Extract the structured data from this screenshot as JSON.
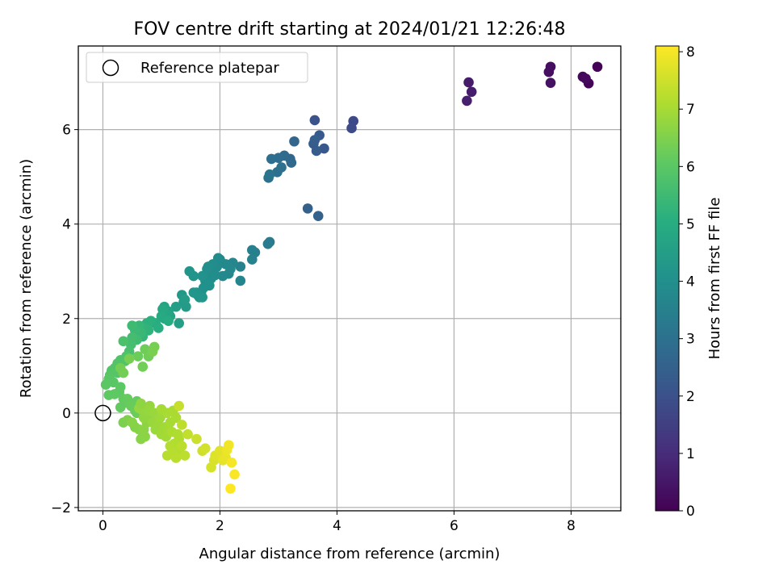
{
  "chart_data": {
    "type": "scatter",
    "title": "FOV centre drift starting at 2024/01/21 12:26:48",
    "xlabel": "Angular distance from reference (arcmin)",
    "ylabel": "Rotation from reference (arcmin)",
    "xlim": [
      -0.42,
      8.85
    ],
    "ylim": [
      -2.07,
      7.77
    ],
    "xticks": [
      0,
      2,
      4,
      6,
      8
    ],
    "yticks": [
      -2,
      0,
      2,
      4,
      6
    ],
    "grid": true,
    "legend": {
      "position": "top-left",
      "entries": [
        "Reference platepar"
      ]
    },
    "reference_point": {
      "x": 0,
      "y": 0
    },
    "colorbar": {
      "label": "Hours from first FF file",
      "colormap": "viridis",
      "range": [
        0,
        8.1
      ],
      "ticks": [
        0,
        1,
        2,
        3,
        4,
        5,
        6,
        7,
        8
      ]
    },
    "points": [
      [
        8.45,
        7.33,
        0.05
      ],
      [
        8.3,
        6.98,
        0.1
      ],
      [
        8.2,
        7.12,
        0.15
      ],
      [
        8.25,
        7.08,
        0.2
      ],
      [
        7.65,
        7.33,
        0.3
      ],
      [
        7.62,
        7.22,
        0.35
      ],
      [
        7.65,
        6.99,
        0.4
      ],
      [
        6.25,
        7.0,
        0.6
      ],
      [
        6.3,
        6.8,
        0.65
      ],
      [
        6.22,
        6.61,
        0.7
      ],
      [
        4.28,
        6.18,
        1.8
      ],
      [
        4.25,
        6.03,
        1.85
      ],
      [
        3.62,
        6.2,
        2.05
      ],
      [
        3.78,
        5.6,
        2.2
      ],
      [
        3.7,
        5.88,
        2.25
      ],
      [
        3.6,
        5.7,
        2.3
      ],
      [
        3.65,
        5.55,
        2.35
      ],
      [
        3.62,
        5.78,
        2.4
      ],
      [
        3.5,
        4.33,
        2.5
      ],
      [
        3.68,
        4.17,
        2.55
      ],
      [
        3.27,
        5.75,
        2.65
      ],
      [
        3.2,
        5.38,
        2.7
      ],
      [
        3.22,
        5.3,
        2.75
      ],
      [
        3.1,
        5.45,
        2.8
      ],
      [
        3.0,
        5.4,
        2.85
      ],
      [
        2.88,
        5.38,
        2.9
      ],
      [
        2.98,
        5.1,
        2.95
      ],
      [
        3.05,
        5.2,
        3.0
      ],
      [
        2.83,
        4.98,
        3.05
      ],
      [
        2.85,
        5.05,
        3.1
      ],
      [
        2.85,
        3.62,
        3.3
      ],
      [
        2.82,
        3.58,
        3.35
      ],
      [
        2.6,
        3.4,
        3.45
      ],
      [
        2.55,
        3.45,
        3.5
      ],
      [
        2.55,
        3.25,
        3.55
      ],
      [
        2.35,
        3.1,
        3.6
      ],
      [
        2.35,
        2.8,
        3.65
      ],
      [
        2.22,
        3.18,
        3.7
      ],
      [
        2.15,
        2.95,
        3.72
      ],
      [
        2.18,
        3.05,
        3.75
      ],
      [
        2.1,
        3.15,
        3.78
      ],
      [
        2.05,
        2.9,
        3.8
      ],
      [
        2.0,
        3.25,
        3.82
      ],
      [
        1.97,
        3.28,
        3.84
      ],
      [
        1.95,
        3.1,
        3.86
      ],
      [
        1.92,
        2.92,
        3.88
      ],
      [
        1.9,
        3.0,
        3.9
      ],
      [
        1.88,
        3.15,
        3.92
      ],
      [
        1.85,
        2.85,
        3.94
      ],
      [
        1.83,
        2.95,
        3.96
      ],
      [
        1.8,
        3.1,
        3.98
      ],
      [
        1.78,
        3.05,
        4.0
      ],
      [
        1.75,
        2.8,
        4.02
      ],
      [
        1.82,
        2.7,
        4.04
      ],
      [
        1.72,
        2.65,
        4.06
      ],
      [
        1.7,
        2.9,
        4.08
      ],
      [
        1.68,
        2.55,
        4.1
      ],
      [
        1.62,
        2.5,
        4.12
      ],
      [
        1.55,
        2.9,
        4.14
      ],
      [
        1.6,
        2.55,
        4.16
      ],
      [
        1.48,
        3.0,
        4.18
      ],
      [
        1.65,
        2.45,
        4.2
      ],
      [
        1.7,
        2.45,
        4.22
      ],
      [
        1.55,
        2.55,
        4.24
      ],
      [
        1.35,
        2.5,
        4.3
      ],
      [
        1.38,
        2.35,
        4.35
      ],
      [
        1.42,
        2.25,
        4.4
      ],
      [
        1.4,
        2.4,
        4.45
      ],
      [
        1.25,
        2.25,
        4.5
      ],
      [
        1.3,
        1.9,
        4.55
      ],
      [
        1.12,
        2.15,
        4.6
      ],
      [
        1.15,
        2.05,
        4.65
      ],
      [
        1.05,
        2.25,
        4.7
      ],
      [
        1.1,
        2.1,
        4.75
      ],
      [
        1.05,
        2.0,
        4.8
      ],
      [
        1.02,
        2.2,
        4.85
      ],
      [
        1.0,
        2.05,
        4.9
      ],
      [
        1.12,
        1.95,
        4.95
      ],
      [
        0.9,
        1.9,
        5.0
      ],
      [
        0.95,
        1.8,
        5.05
      ],
      [
        0.82,
        1.95,
        5.1
      ],
      [
        0.75,
        1.9,
        5.15
      ],
      [
        0.78,
        1.75,
        5.2
      ],
      [
        0.7,
        1.8,
        5.25
      ],
      [
        0.68,
        1.62,
        5.3
      ],
      [
        0.62,
        1.85,
        5.35
      ],
      [
        0.65,
        1.7,
        5.4
      ],
      [
        0.55,
        1.75,
        5.45
      ],
      [
        0.5,
        1.85,
        5.5
      ],
      [
        0.58,
        1.55,
        5.55
      ],
      [
        0.5,
        1.6,
        5.6
      ],
      [
        0.48,
        1.45,
        5.65
      ],
      [
        0.45,
        1.3,
        5.7
      ],
      [
        0.35,
        1.52,
        5.75
      ],
      [
        0.3,
        1.12,
        5.8
      ],
      [
        0.4,
        1.2,
        5.82
      ],
      [
        0.38,
        1.1,
        5.84
      ],
      [
        0.25,
        1.05,
        5.86
      ],
      [
        0.2,
        0.95,
        5.88
      ],
      [
        0.15,
        0.9,
        5.9
      ],
      [
        0.25,
        0.85,
        5.92
      ],
      [
        0.12,
        0.8,
        5.94
      ],
      [
        0.18,
        0.65,
        5.96
      ],
      [
        0.1,
        0.72,
        5.98
      ],
      [
        0.05,
        0.6,
        6.0
      ],
      [
        0.3,
        0.55,
        6.02
      ],
      [
        0.28,
        0.45,
        6.04
      ],
      [
        0.2,
        0.4,
        6.06
      ],
      [
        0.1,
        0.38,
        6.08
      ],
      [
        0.35,
        0.3,
        6.1
      ],
      [
        0.38,
        0.22,
        6.12
      ],
      [
        0.3,
        0.12,
        6.14
      ],
      [
        0.42,
        0.3,
        6.16
      ],
      [
        0.58,
        0.25,
        6.18
      ],
      [
        0.48,
        0.15,
        6.2
      ],
      [
        0.55,
        0.05,
        6.22
      ],
      [
        0.58,
        0.0,
        6.24
      ],
      [
        0.6,
        1.2,
        6.26
      ],
      [
        0.72,
        1.35,
        6.28
      ],
      [
        0.78,
        1.2,
        6.3
      ],
      [
        0.68,
        0.98,
        6.32
      ],
      [
        0.35,
        0.85,
        6.34
      ],
      [
        0.3,
        0.95,
        6.36
      ],
      [
        0.45,
        1.15,
        6.38
      ],
      [
        0.88,
        1.4,
        6.4
      ],
      [
        0.85,
        1.3,
        6.42
      ],
      [
        0.35,
        -0.2,
        6.45
      ],
      [
        0.42,
        -0.15,
        6.5
      ],
      [
        0.55,
        -0.3,
        6.55
      ],
      [
        0.62,
        -0.35,
        6.6
      ],
      [
        0.65,
        -0.55,
        6.62
      ],
      [
        0.72,
        -0.5,
        6.64
      ],
      [
        0.7,
        -0.35,
        6.66
      ],
      [
        0.75,
        -0.2,
        6.68
      ],
      [
        0.8,
        -0.12,
        6.7
      ],
      [
        0.68,
        0.05,
        6.72
      ],
      [
        0.7,
        -0.1,
        6.74
      ],
      [
        0.62,
        0.1,
        6.76
      ],
      [
        0.8,
        0.15,
        6.78
      ],
      [
        0.78,
        0.05,
        6.8
      ],
      [
        0.88,
        0.0,
        6.82
      ],
      [
        0.85,
        -0.2,
        6.84
      ],
      [
        0.9,
        -0.35,
        6.86
      ],
      [
        0.95,
        -0.25,
        6.88
      ],
      [
        0.98,
        -0.1,
        6.9
      ],
      [
        1.05,
        -0.3,
        6.92
      ],
      [
        1.0,
        -0.45,
        6.94
      ],
      [
        1.08,
        -0.5,
        6.96
      ],
      [
        1.12,
        -0.35,
        6.98
      ],
      [
        1.15,
        -0.2,
        7.0
      ],
      [
        1.1,
        0.0,
        7.02
      ],
      [
        1.2,
        0.05,
        7.04
      ],
      [
        1.25,
        -0.1,
        7.06
      ],
      [
        1.18,
        -0.4,
        7.08
      ],
      [
        1.28,
        -0.45,
        7.1
      ],
      [
        1.3,
        -0.55,
        7.12
      ],
      [
        1.22,
        -0.65,
        7.14
      ],
      [
        1.15,
        -0.7,
        7.16
      ],
      [
        1.3,
        -0.8,
        7.18
      ],
      [
        1.2,
        -0.85,
        7.2
      ],
      [
        1.1,
        -0.9,
        7.22
      ],
      [
        1.25,
        -0.95,
        7.24
      ],
      [
        1.35,
        -0.7,
        7.26
      ],
      [
        1.4,
        -0.9,
        7.28
      ],
      [
        1.35,
        -0.25,
        7.3
      ],
      [
        0.65,
        0.2,
        6.7
      ],
      [
        1.0,
        0.08,
        7.0
      ],
      [
        0.5,
        -0.2,
        6.6
      ],
      [
        1.45,
        -0.45,
        7.35
      ],
      [
        1.3,
        0.15,
        7.4
      ],
      [
        1.6,
        -0.55,
        7.45
      ],
      [
        1.7,
        -0.8,
        7.5
      ],
      [
        1.75,
        -0.75,
        7.55
      ],
      [
        1.85,
        -1.15,
        7.6
      ],
      [
        1.9,
        -1.0,
        7.65
      ],
      [
        1.92,
        -0.9,
        7.7
      ],
      [
        2.0,
        -0.8,
        7.75
      ],
      [
        2.05,
        -1.0,
        7.8
      ],
      [
        2.1,
        -0.95,
        7.85
      ],
      [
        2.12,
        -0.78,
        7.9
      ],
      [
        2.15,
        -0.68,
        7.95
      ],
      [
        2.2,
        -1.05,
        8.0
      ],
      [
        2.25,
        -1.3,
        8.05
      ],
      [
        2.18,
        -1.6,
        8.1
      ]
    ]
  }
}
